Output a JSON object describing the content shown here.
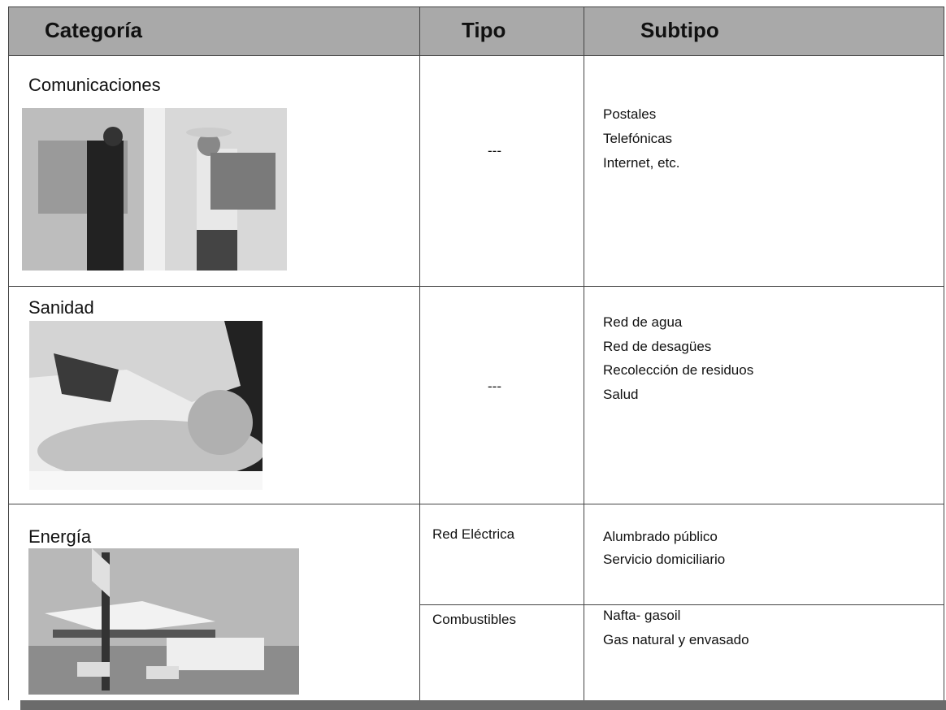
{
  "table": {
    "header": [
      "Categoría",
      "Tipo",
      "Subtipo"
    ],
    "rows": [
      {
        "category": "Comunicaciones",
        "types": [
          {
            "type": "---",
            "subtypes": [
              "Postales",
              "Telefónicas",
              "Internet, etc."
            ]
          }
        ]
      },
      {
        "category": "Sanidad",
        "types": [
          {
            "type": "---",
            "subtypes": [
              "Red de agua",
              "Red de desagües",
              "Recolección de residuos",
              "Salud"
            ]
          }
        ]
      },
      {
        "category": "Energía",
        "types": [
          {
            "type": "Red Eléctrica",
            "subtypes": [
              "Alumbrado público",
              "Servicio domiciliario"
            ]
          },
          {
            "type": "Combustibles",
            "subtypes": [
              "Nafta- gasoil",
              "Gas natural y envasado"
            ]
          }
        ]
      }
    ]
  }
}
